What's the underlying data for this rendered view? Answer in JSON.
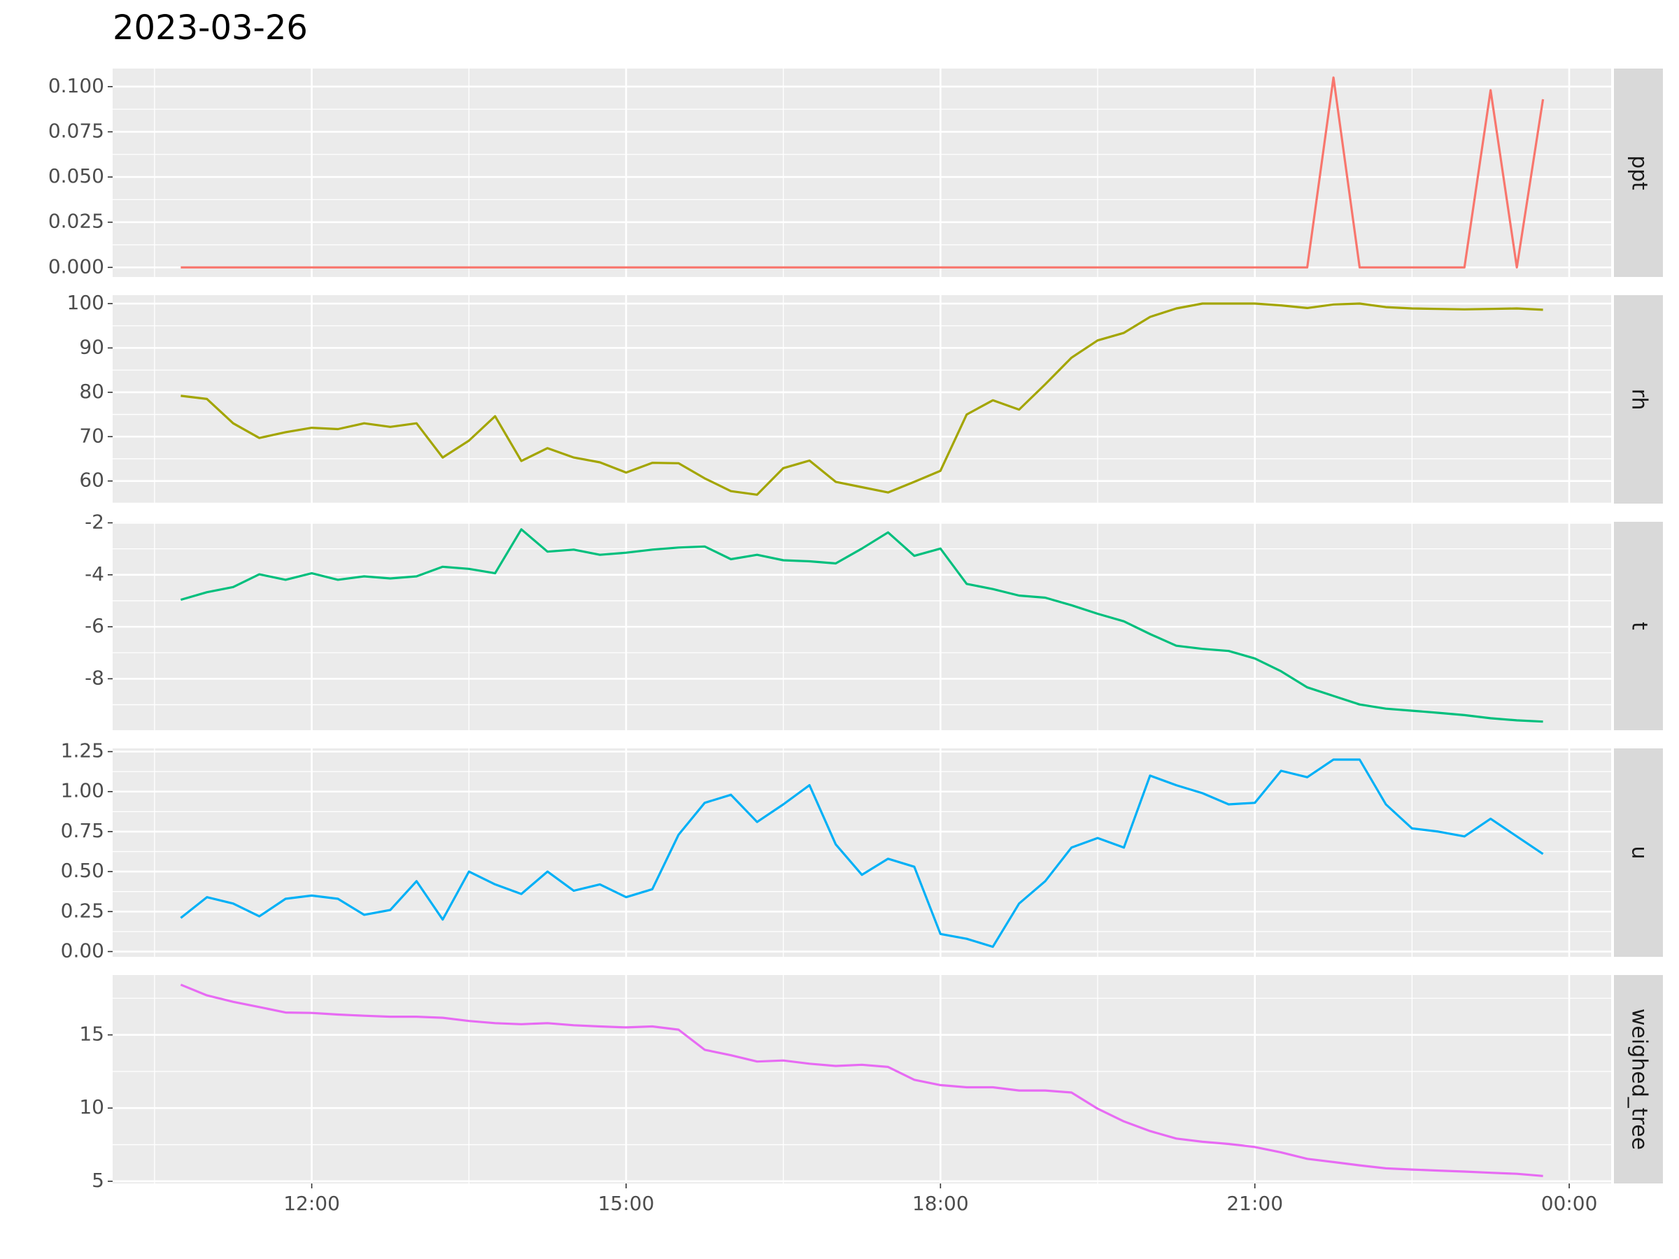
{
  "chart_data": {
    "type": "line",
    "title": "2023-03-26",
    "x": [
      645,
      660,
      675,
      690,
      705,
      720,
      735,
      750,
      765,
      780,
      795,
      810,
      825,
      840,
      855,
      870,
      885,
      900,
      915,
      930,
      945,
      960,
      975,
      990,
      1005,
      1020,
      1035,
      1050,
      1065,
      1080,
      1095,
      1110,
      1125,
      1140,
      1155,
      1170,
      1185,
      1200,
      1215,
      1230,
      1245,
      1260,
      1275,
      1290,
      1305,
      1320,
      1335,
      1350,
      1365,
      1380,
      1395,
      1410,
      1425
    ],
    "xlim": [
      606,
      1464
    ],
    "xticks": [
      {
        "value": 720,
        "label": "12:00"
      },
      {
        "value": 900,
        "label": "15:00"
      },
      {
        "value": 1080,
        "label": "18:00"
      },
      {
        "value": 1260,
        "label": "21:00"
      },
      {
        "value": 1440,
        "label": "00:00"
      }
    ],
    "grid": true,
    "series": [
      {
        "name": "ppt",
        "color": "#F8766D",
        "ylim": [
          -0.0053,
          0.11
        ],
        "yticks": [
          {
            "value": 0,
            "label": "0.000"
          },
          {
            "value": 0.025,
            "label": "0.025"
          },
          {
            "value": 0.05,
            "label": "0.050"
          },
          {
            "value": 0.075,
            "label": "0.075"
          },
          {
            "value": 0.1,
            "label": "0.100"
          }
        ],
        "values": [
          0,
          0,
          0,
          0,
          0,
          0,
          0,
          0,
          0,
          0,
          0,
          0,
          0,
          0,
          0,
          0,
          0,
          0,
          0,
          0,
          0,
          0,
          0,
          0,
          0,
          0,
          0,
          0,
          0,
          0,
          0,
          0,
          0,
          0,
          0,
          0,
          0,
          0,
          0,
          0,
          0,
          0,
          0,
          0,
          0.105,
          0,
          0,
          0,
          0,
          0,
          0.098,
          0,
          0.093
        ]
      },
      {
        "name": "rh",
        "color": "#A3A500",
        "ylim": [
          54.9,
          101.9
        ],
        "yticks": [
          60,
          70,
          80,
          90,
          100
        ],
        "values": [
          79.2,
          78.5,
          73,
          69.7,
          71,
          72,
          71.7,
          73,
          72.2,
          73,
          65.3,
          69.1,
          74.6,
          64.5,
          67.4,
          65.3,
          64.2,
          61.9,
          64.1,
          64,
          60.6,
          57.7,
          56.9,
          62.9,
          64.6,
          59.8,
          58.6,
          57.4,
          59.8,
          62.3,
          75,
          78.2,
          76.1,
          81.8,
          87.8,
          91.7,
          93.4,
          97,
          98.9,
          100,
          100,
          100,
          99.6,
          99,
          99.8,
          100,
          99.2,
          98.9,
          98.8,
          98.7,
          98.8,
          98.9,
          98.6
        ]
      },
      {
        "name": "t",
        "color": "#00BF7D",
        "ylim": [
          -9.98,
          -1.96
        ],
        "yticks": [
          -8,
          -6,
          -4,
          -2
        ],
        "values": [
          -4.96,
          -4.67,
          -4.47,
          -3.98,
          -4.19,
          -3.94,
          -4.19,
          -4.06,
          -4.14,
          -4.06,
          -3.69,
          -3.77,
          -3.94,
          -2.25,
          -3.11,
          -3.03,
          -3.23,
          -3.15,
          -3.03,
          -2.95,
          -2.91,
          -3.4,
          -3.23,
          -3.44,
          -3.48,
          -3.56,
          -2.99,
          -2.37,
          -3.27,
          -2.99,
          -4.35,
          -4.55,
          -4.8,
          -4.88,
          -5.17,
          -5.5,
          -5.79,
          -6.28,
          -6.73,
          -6.85,
          -6.93,
          -7.22,
          -7.71,
          -8.33,
          -8.66,
          -8.99,
          -9.15,
          -9.23,
          -9.31,
          -9.4,
          -9.52,
          -9.6,
          -9.65
        ]
      },
      {
        "name": "u",
        "color": "#00B0F6",
        "ylim": [
          -0.033,
          1.27
        ],
        "yticks": [
          {
            "value": 0,
            "label": "0.00"
          },
          {
            "value": 0.25,
            "label": "0.25"
          },
          {
            "value": 0.5,
            "label": "0.50"
          },
          {
            "value": 0.75,
            "label": "0.75"
          },
          {
            "value": 1,
            "label": "1.00"
          },
          {
            "value": 1.25,
            "label": "1.25"
          }
        ],
        "values": [
          0.21,
          0.34,
          0.3,
          0.22,
          0.33,
          0.35,
          0.33,
          0.23,
          0.26,
          0.44,
          0.2,
          0.5,
          0.42,
          0.36,
          0.5,
          0.38,
          0.42,
          0.34,
          0.39,
          0.73,
          0.93,
          0.98,
          0.81,
          0.92,
          1.04,
          0.67,
          0.48,
          0.58,
          0.53,
          0.11,
          0.08,
          0.03,
          0.3,
          0.44,
          0.65,
          0.71,
          0.65,
          1.1,
          1.04,
          0.99,
          0.92,
          0.93,
          1.13,
          1.09,
          1.2,
          1.2,
          0.92,
          0.77,
          0.75,
          0.72,
          0.83,
          0.72,
          0.61
        ]
      },
      {
        "name": "weighed_tree",
        "color": "#E76BF3",
        "ylim": [
          4.85,
          19.09
        ],
        "yticks": [
          5,
          10,
          15
        ],
        "values": [
          18.43,
          17.7,
          17.26,
          16.9,
          16.53,
          16.5,
          16.39,
          16.31,
          16.24,
          16.24,
          16.17,
          15.95,
          15.8,
          15.73,
          15.8,
          15.66,
          15.58,
          15.51,
          15.58,
          15.36,
          13.98,
          13.61,
          13.18,
          13.25,
          13.03,
          12.88,
          12.96,
          12.81,
          11.93,
          11.57,
          11.42,
          11.42,
          11.2,
          11.2,
          11.06,
          9.96,
          9.09,
          8.43,
          7.92,
          7.7,
          7.55,
          7.34,
          6.97,
          6.53,
          6.31,
          6.09,
          5.88,
          5.8,
          5.73,
          5.66,
          5.58,
          5.51,
          5.36
        ]
      }
    ]
  }
}
